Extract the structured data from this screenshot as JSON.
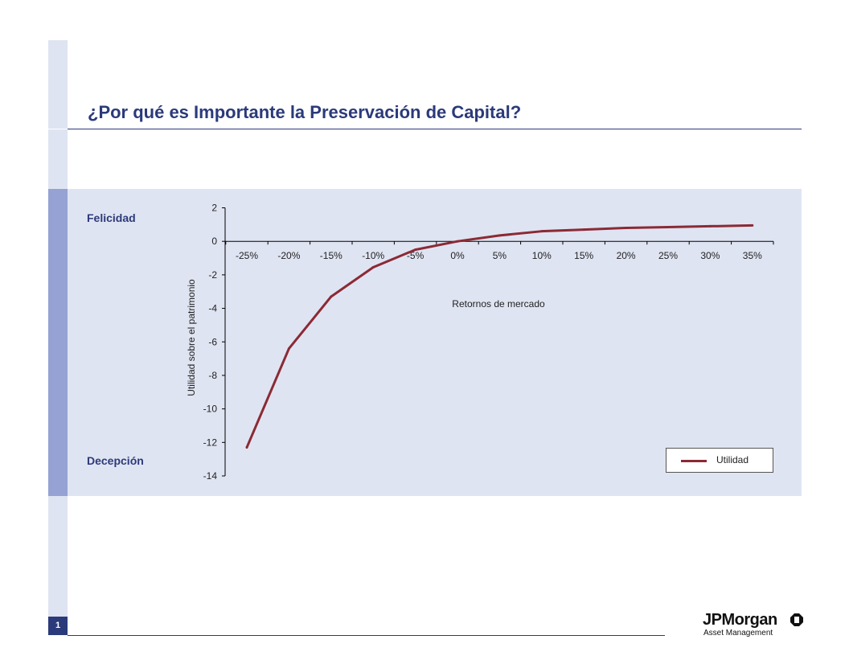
{
  "page": {
    "title": "¿Por qué es Importante la Preservación de Capital?",
    "label_top": "Felicidad",
    "label_bottom": "Decepción",
    "page_number": "1"
  },
  "brand": {
    "name": "JPMorgan",
    "subtitle": "Asset Management",
    "icon": "jpmorgan-octagon-icon",
    "primary_color": "#2b3a7a"
  },
  "chart_data": {
    "type": "line",
    "title": "",
    "xlabel": "Retornos de mercado",
    "ylabel": "Utilidad sobre el patrimonio",
    "x_ticks": [
      "-25%",
      "-20%",
      "-15%",
      "-10%",
      "-5%",
      "0%",
      "5%",
      "10%",
      "15%",
      "20%",
      "25%",
      "30%",
      "35%"
    ],
    "x": [
      -25,
      -20,
      -15,
      -10,
      -5,
      0,
      5,
      10,
      15,
      20,
      25,
      30,
      35
    ],
    "y_ticks": [
      2,
      0,
      -2,
      -4,
      -6,
      -8,
      -10,
      -12,
      -14
    ],
    "ylim": [
      -14,
      2
    ],
    "series": [
      {
        "name": "Utilidad",
        "color": "#8b2a35",
        "values": [
          -12.3,
          -6.4,
          -3.3,
          -1.55,
          -0.5,
          0.0,
          0.35,
          0.6,
          0.7,
          0.8,
          0.85,
          0.9,
          0.95
        ]
      }
    ],
    "legend_position": "bottom-right",
    "grid": false
  }
}
